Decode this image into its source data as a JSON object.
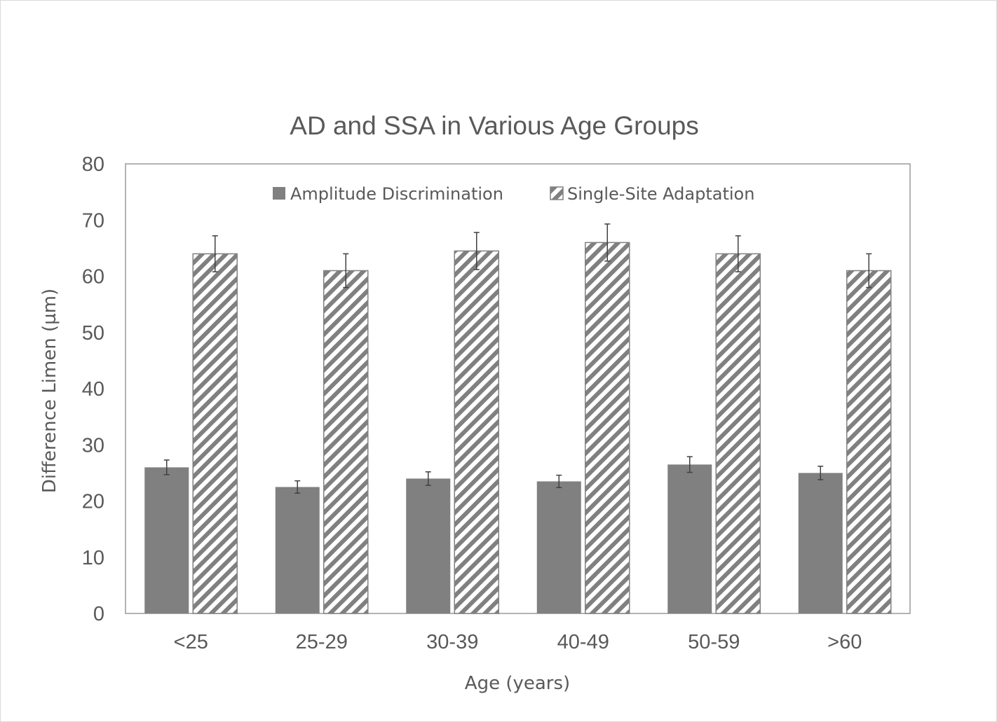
{
  "chart_data": {
    "type": "bar",
    "title": "AD and SSA in Various Age Groups",
    "xlabel": "Age (years)",
    "ylabel": "Difference Limen (µm)",
    "categories": [
      "<25",
      "25-29",
      "30-39",
      "40-49",
      "50-59",
      ">60"
    ],
    "ylim": [
      0,
      80
    ],
    "yticks": [
      0,
      10,
      20,
      30,
      40,
      50,
      60,
      70,
      80
    ],
    "grid": false,
    "legend_position": "top",
    "series": [
      {
        "name": "Amplitude Discrimination",
        "values": [
          26,
          22.5,
          24,
          23.5,
          26.5,
          25
        ],
        "errors": [
          1.3,
          1.1,
          1.2,
          1.1,
          1.4,
          1.2
        ],
        "color": "#808080",
        "pattern": "solid"
      },
      {
        "name": "Single-Site Adaptation",
        "values": [
          64,
          61,
          64.5,
          66,
          64,
          61
        ],
        "errors": [
          3.2,
          3.0,
          3.3,
          3.3,
          3.2,
          3.0
        ],
        "color": "#808080",
        "pattern": "diagonal-hatch"
      }
    ]
  }
}
